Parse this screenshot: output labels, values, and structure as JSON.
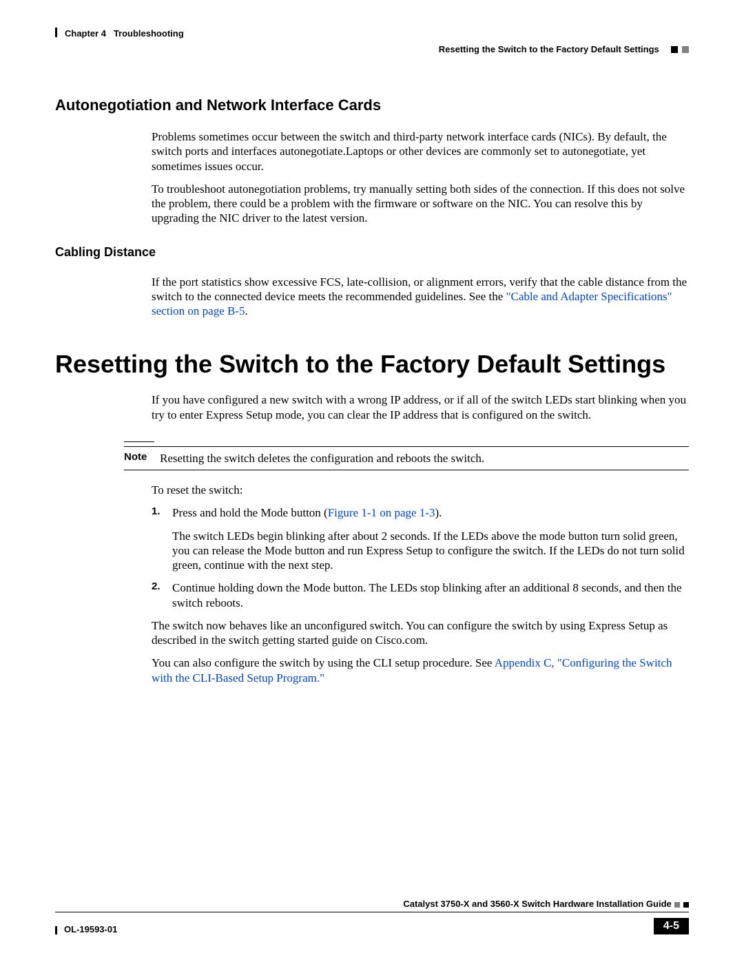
{
  "header": {
    "chapter_label": "Chapter 4",
    "chapter_title": "Troubleshooting",
    "section_title": "Resetting the Switch to the Factory Default Settings",
    "square_colors": [
      "#000000",
      "#808080"
    ]
  },
  "section_autoneg": {
    "heading": "Autonegotiation and Network Interface Cards",
    "p1": "Problems sometimes occur between the switch and third-party network interface cards (NICs). By default, the switch ports and interfaces autonegotiate.Laptops or other devices are commonly set to autonegotiate, yet sometimes issues occur.",
    "p2": "To troubleshoot autonegotiation problems, try manually setting both sides of the connection. If this does not solve the problem, there could be a problem with the firmware or software on the NIC. You can resolve this by upgrading the NIC driver to the latest version."
  },
  "section_cabling": {
    "heading": "Cabling Distance",
    "p1a": "If the port statistics show excessive FCS, late-collision, or alignment errors, verify that the cable distance from the switch to the connected device meets the recommended guidelines. See the ",
    "link1": "\"Cable and Adapter Specifications\" section on page B-5",
    "p1b": "."
  },
  "section_reset": {
    "heading": "Resetting the Switch to the Factory Default Settings",
    "p1": "If you have configured a new switch with a wrong IP address, or if all of the switch LEDs start blinking when you try to enter Express Setup mode, you can clear the IP address that is configured on the switch.",
    "note_label": "Note",
    "note_text": "Resetting the switch deletes the configuration and reboots the switch.",
    "p2": "To reset the switch:",
    "step1_num": "1.",
    "step1a": "Press and hold the Mode button (",
    "step1_link": "Figure 1-1 on page 1-3",
    "step1b": ").",
    "step1_sub": "The switch LEDs begin blinking after about 2 seconds. If the LEDs above the mode button turn solid green, you can release the Mode button and run Express Setup to configure the switch. If the LEDs do not turn solid green, continue with the next step.",
    "step2_num": "2.",
    "step2": "Continue holding down the Mode button. The LEDs stop blinking after an additional 8 seconds, and then the switch reboots.",
    "p3": "The switch now behaves like an unconfigured switch. You can configure the switch by using Express Setup as described in the switch getting started guide on Cisco.com.",
    "p4a": "You can also configure the switch by using the CLI setup procedure. See ",
    "p4_link": "Appendix C, \"Configuring the Switch with the CLI-Based Setup Program.\""
  },
  "footer": {
    "guide_title": "Catalyst 3750-X and 3560-X Switch Hardware Installation Guide",
    "doc_id": "OL-19593-01",
    "page_number": "4-5",
    "square_colors": [
      "#808080",
      "#000000"
    ]
  },
  "colors": {
    "link": "#0046cc",
    "text": "#000000",
    "background": "#ffffff"
  }
}
